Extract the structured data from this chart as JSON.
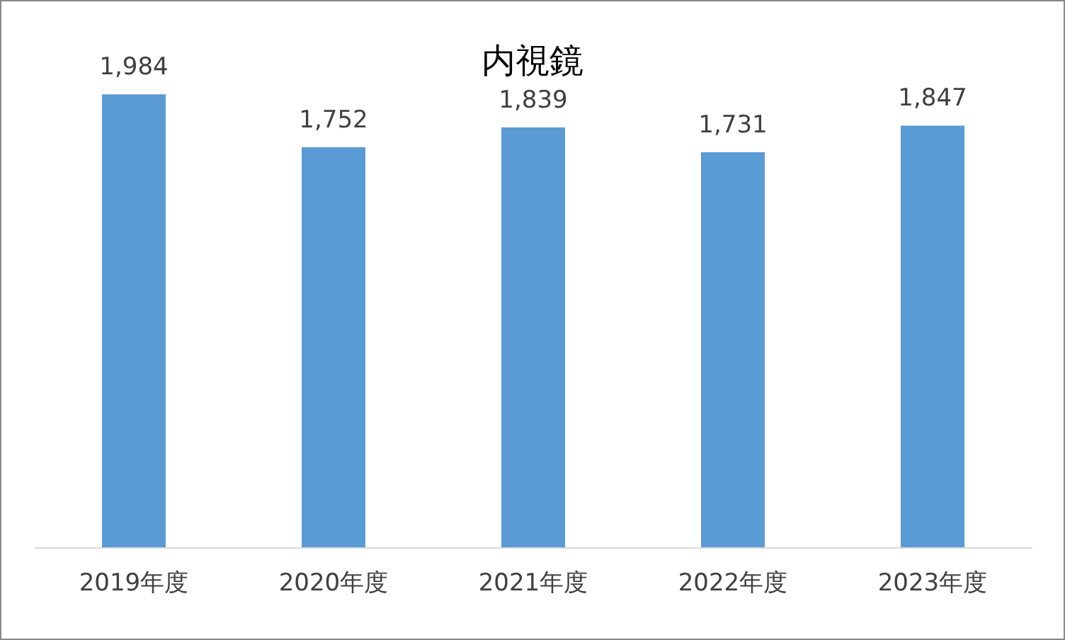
{
  "chart_data": {
    "type": "bar",
    "title": "内視鏡",
    "categories": [
      "2019年度",
      "2020年度",
      "2021年度",
      "2022年度",
      "2023年度"
    ],
    "values": [
      1984,
      1752,
      1839,
      1731,
      1847
    ],
    "color": "#5b9bd5",
    "value_labels": [
      "1,984",
      "1,752",
      "1,839",
      "1,731",
      "1,847"
    ],
    "tick_labels": "x"
  }
}
